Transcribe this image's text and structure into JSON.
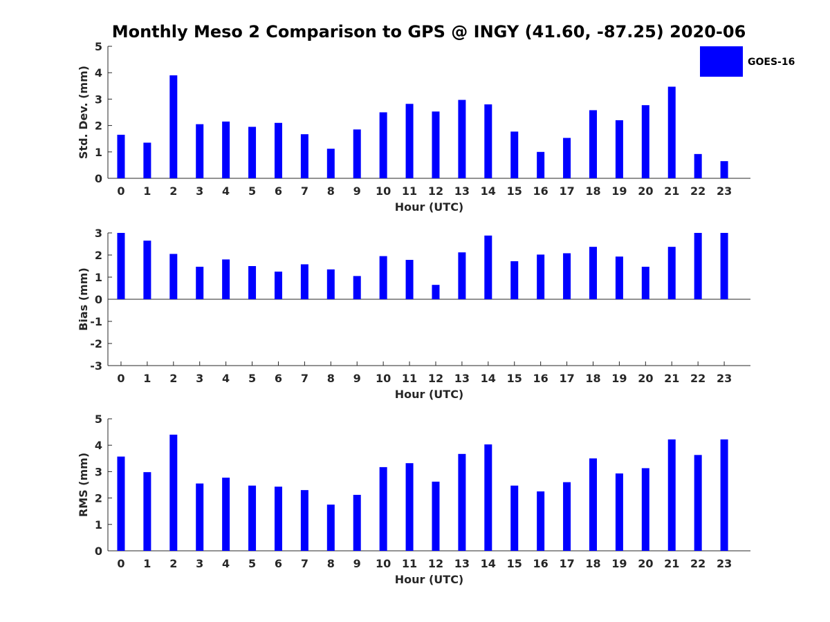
{
  "title": "Monthly Meso 2 Comparison to GPS @ INGY (41.60, -87.25) 2020-06",
  "legend": {
    "label": "GOES-16",
    "position": "top-right",
    "color": "#0000ff"
  },
  "bar_color": "#0000ff",
  "chart_data": [
    {
      "type": "bar",
      "name": "std",
      "ylabel": "Std. Dev. (mm)",
      "xlabel": "Hour (UTC)",
      "categories": [
        "0",
        "1",
        "2",
        "3",
        "4",
        "5",
        "6",
        "7",
        "8",
        "9",
        "10",
        "11",
        "12",
        "13",
        "14",
        "15",
        "16",
        "17",
        "18",
        "19",
        "20",
        "21",
        "22",
        "23"
      ],
      "ylim": [
        0,
        5
      ],
      "yticks": [
        0,
        1,
        2,
        3,
        4,
        5
      ],
      "grid": false,
      "series": [
        {
          "name": "GOES-16",
          "values": [
            1.65,
            1.35,
            3.9,
            2.05,
            2.15,
            1.95,
            2.1,
            1.67,
            1.12,
            1.85,
            2.5,
            2.82,
            2.53,
            2.97,
            2.8,
            1.77,
            1.0,
            1.53,
            2.58,
            2.2,
            2.77,
            3.47,
            0.92,
            0.65
          ]
        }
      ]
    },
    {
      "type": "bar",
      "name": "bias",
      "ylabel": "Bias (mm)",
      "xlabel": "Hour (UTC)",
      "categories": [
        "0",
        "1",
        "2",
        "3",
        "4",
        "5",
        "6",
        "7",
        "8",
        "9",
        "10",
        "11",
        "12",
        "13",
        "14",
        "15",
        "16",
        "17",
        "18",
        "19",
        "20",
        "21",
        "22",
        "23"
      ],
      "ylim": [
        -3,
        3
      ],
      "yticks": [
        -3,
        -2,
        -1,
        0,
        1,
        2,
        3
      ],
      "grid": false,
      "series": [
        {
          "name": "GOES-16",
          "values": [
            3.0,
            2.65,
            2.05,
            1.47,
            1.8,
            1.5,
            1.25,
            1.58,
            1.35,
            1.05,
            1.95,
            1.78,
            0.65,
            2.12,
            2.88,
            1.72,
            2.02,
            2.08,
            2.37,
            1.93,
            1.47,
            2.37,
            3.0,
            3.0
          ]
        }
      ]
    },
    {
      "type": "bar",
      "name": "rms",
      "ylabel": "RMS (mm)",
      "xlabel": "Hour (UTC)",
      "categories": [
        "0",
        "1",
        "2",
        "3",
        "4",
        "5",
        "6",
        "7",
        "8",
        "9",
        "10",
        "11",
        "12",
        "13",
        "14",
        "15",
        "16",
        "17",
        "18",
        "19",
        "20",
        "21",
        "22",
        "23"
      ],
      "ylim": [
        0,
        5
      ],
      "yticks": [
        0,
        1,
        2,
        3,
        4,
        5
      ],
      "grid": false,
      "series": [
        {
          "name": "GOES-16",
          "values": [
            3.57,
            2.98,
            4.4,
            2.55,
            2.77,
            2.47,
            2.43,
            2.3,
            1.75,
            2.12,
            3.17,
            3.32,
            2.62,
            3.67,
            4.03,
            2.47,
            2.25,
            2.6,
            3.5,
            2.93,
            3.13,
            4.22,
            3.63,
            4.22
          ]
        }
      ]
    }
  ]
}
